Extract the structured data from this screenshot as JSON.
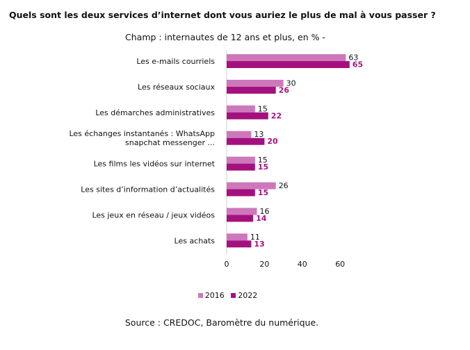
{
  "title": "Quels sont les deux services d’internet dont vous auriez le plus de mal à vous passer ?",
  "subtitle": "Champ : internautes de 12 ans et plus, en % -",
  "source": "Source : CREDOC, Baromètre du numérique.",
  "colors": {
    "s2016": "#cc78bb",
    "s2022": "#a4117e",
    "axis": "#cfcfcf"
  },
  "chart_data": {
    "type": "bar",
    "orientation": "horizontal",
    "categories": [
      [
        "Les e-mails courriels"
      ],
      [
        "Les réseaux sociaux"
      ],
      [
        "Les démarches administratives"
      ],
      [
        "Les échanges instantanés : WhatsApp",
        "snapchat messenger ..."
      ],
      [
        "Les films les vidéos sur internet"
      ],
      [
        "Les sites d’information d’actualités"
      ],
      [
        "Les jeux en réseau / jeux vidéos"
      ],
      [
        "Les achats"
      ]
    ],
    "series": [
      {
        "name": "2016",
        "values": [
          63,
          30,
          15,
          13,
          15,
          26,
          16,
          11
        ]
      },
      {
        "name": "2022",
        "values": [
          65,
          26,
          22,
          20,
          15,
          15,
          14,
          13
        ]
      }
    ],
    "xticks": [
      0,
      20,
      40,
      60
    ],
    "xlim": [
      0,
      70
    ],
    "grid": false,
    "legend": "bottom"
  }
}
